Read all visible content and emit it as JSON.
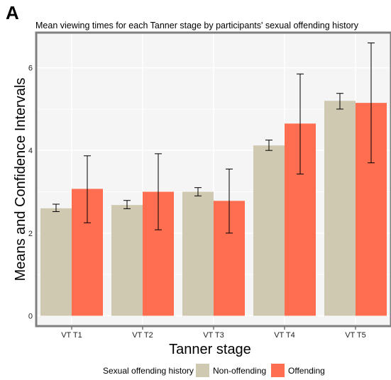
{
  "panel_label": "A",
  "chart_data": {
    "type": "bar",
    "title": "Mean viewing times for each Tanner stage by participants' sexual offending history",
    "xlabel": "Tanner stage",
    "ylabel": "Means and Confidence Intervals",
    "categories": [
      "VT T1",
      "VT T2",
      "VT T3",
      "VT T4",
      "VT T5"
    ],
    "ylim": [
      -0.25,
      6.85
    ],
    "yticks": [
      0,
      2,
      4,
      6
    ],
    "grid": true,
    "legend_position": "bottom",
    "legend_title": "Sexual offending history",
    "series": [
      {
        "name": "Non-offending",
        "color": "#CFC9B1",
        "values": [
          2.6,
          2.68,
          3.0,
          4.12,
          5.2
        ],
        "ci_low": [
          2.52,
          2.59,
          2.9,
          4.0,
          5.0
        ],
        "ci_high": [
          2.7,
          2.79,
          3.1,
          4.25,
          5.38
        ]
      },
      {
        "name": "Offending",
        "color": "#FF6E50",
        "values": [
          3.07,
          3.0,
          2.78,
          4.65,
          5.15
        ],
        "ci_low": [
          2.25,
          2.08,
          2.0,
          3.43,
          3.7
        ],
        "ci_high": [
          3.87,
          3.92,
          3.55,
          5.85,
          6.6
        ]
      }
    ]
  }
}
